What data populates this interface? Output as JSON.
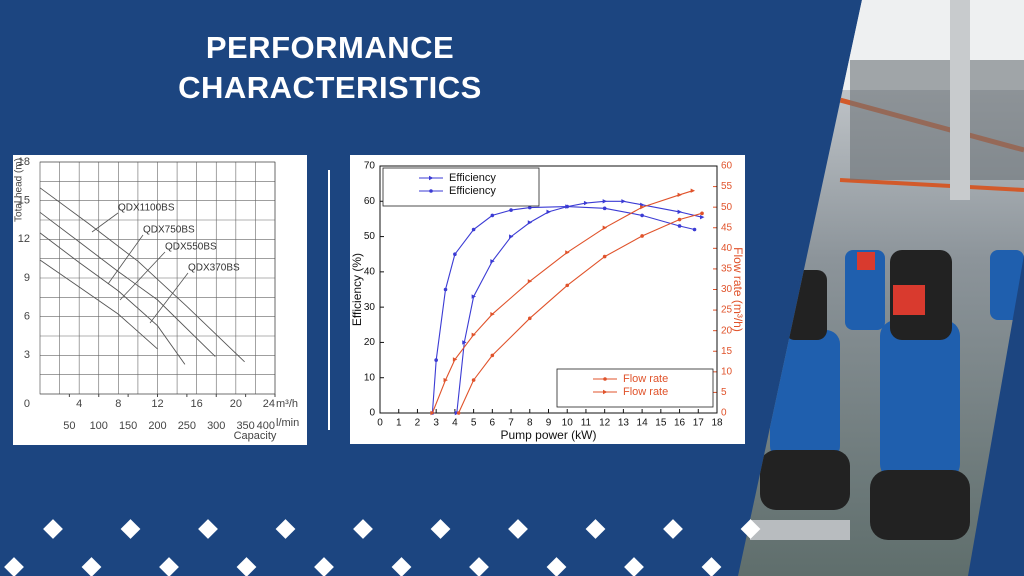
{
  "title": "PERFORMANCE CHARACTERISTICS",
  "chart_data": [
    {
      "type": "line",
      "ylabel": "Total head (m)",
      "xlabel": "Capacity",
      "x_unit": "m³/h",
      "x2_unit": "l/min",
      "xlim": [
        0,
        24
      ],
      "xticks": [
        4,
        8,
        12,
        16,
        20,
        24
      ],
      "x2lim": [
        0,
        400
      ],
      "x2ticks": [
        50,
        100,
        150,
        200,
        250,
        300,
        350,
        400
      ],
      "ylim": [
        0,
        18
      ],
      "yticks": [
        0,
        3,
        6,
        9,
        12,
        15,
        18
      ],
      "grid": true,
      "minor_grid": true,
      "series": [
        {
          "name": "QDX1100BS",
          "color": "#555555",
          "x": [
            0,
            5,
            10,
            15,
            20.9
          ],
          "values": [
            16.0,
            13.2,
            10.3,
            6.8,
            2.5
          ]
        },
        {
          "name": "QDX750BS",
          "color": "#555555",
          "x": [
            0,
            4,
            8,
            12,
            17.9
          ],
          "values": [
            14.1,
            11.8,
            9.5,
            7.3,
            2.9
          ]
        },
        {
          "name": "QDX550BS",
          "color": "#555555",
          "x": [
            0,
            4,
            8,
            12,
            14.8
          ],
          "values": [
            12.5,
            10.2,
            8.0,
            5.3,
            2.3
          ]
        },
        {
          "name": "QDX370BS",
          "color": "#555555",
          "x": [
            0,
            4,
            8,
            12
          ],
          "values": [
            10.4,
            8.3,
            6.2,
            3.5
          ]
        }
      ]
    },
    {
      "type": "line",
      "xlabel": "Pump power (kW)",
      "ylabel": "Efficiency (%)",
      "y2label": "Flow rate (m³/h)",
      "xlim": [
        0,
        18
      ],
      "xticks": [
        0,
        1,
        2,
        3,
        4,
        5,
        6,
        7,
        8,
        9,
        10,
        11,
        12,
        13,
        14,
        15,
        16,
        17,
        18
      ],
      "ylim": [
        0,
        70
      ],
      "yticks": [
        0,
        10,
        20,
        30,
        40,
        50,
        60,
        70
      ],
      "y2lim": [
        0,
        60
      ],
      "y2ticks": [
        0,
        5,
        10,
        15,
        20,
        25,
        30,
        35,
        40,
        45,
        50,
        55,
        60
      ],
      "legend": [
        "upper left",
        "lower right"
      ],
      "series": [
        {
          "name": "Efficiency",
          "color": "#3b3bd4",
          "marker": "arrow",
          "x": [
            4.1,
            4.5,
            5,
            6,
            7,
            8,
            9,
            10,
            11,
            12,
            13,
            14,
            16,
            17.2
          ],
          "values": [
            0,
            20,
            33,
            43,
            50,
            54,
            57,
            58.5,
            59.5,
            60,
            60,
            59,
            57,
            55.5
          ]
        },
        {
          "name": "Efficiency",
          "color": "#3b3bd4",
          "marker": "circle",
          "x": [
            2.8,
            3,
            3.5,
            4,
            5,
            6,
            7,
            8,
            10,
            12,
            14,
            16,
            16.8
          ],
          "values": [
            0,
            15,
            35,
            45,
            52,
            56,
            57.5,
            58.2,
            58.5,
            58,
            56,
            53,
            52
          ]
        },
        {
          "name": "Flow rate",
          "color": "#e0532b",
          "marker": "circle",
          "axis": "y2",
          "x": [
            4.2,
            5,
            6,
            8,
            10,
            12,
            14,
            16,
            17.2
          ],
          "values": [
            0,
            8,
            14,
            23,
            31,
            38,
            43,
            47,
            48.5
          ]
        },
        {
          "name": "Flow rate",
          "color": "#e0532b",
          "marker": "arrow",
          "axis": "y2",
          "x": [
            2.8,
            3.5,
            4,
            5,
            6,
            8,
            10,
            12,
            14,
            16,
            16.7
          ],
          "values": [
            0,
            8,
            13,
            19,
            24,
            32,
            39,
            45,
            50,
            53,
            54
          ]
        }
      ]
    }
  ]
}
